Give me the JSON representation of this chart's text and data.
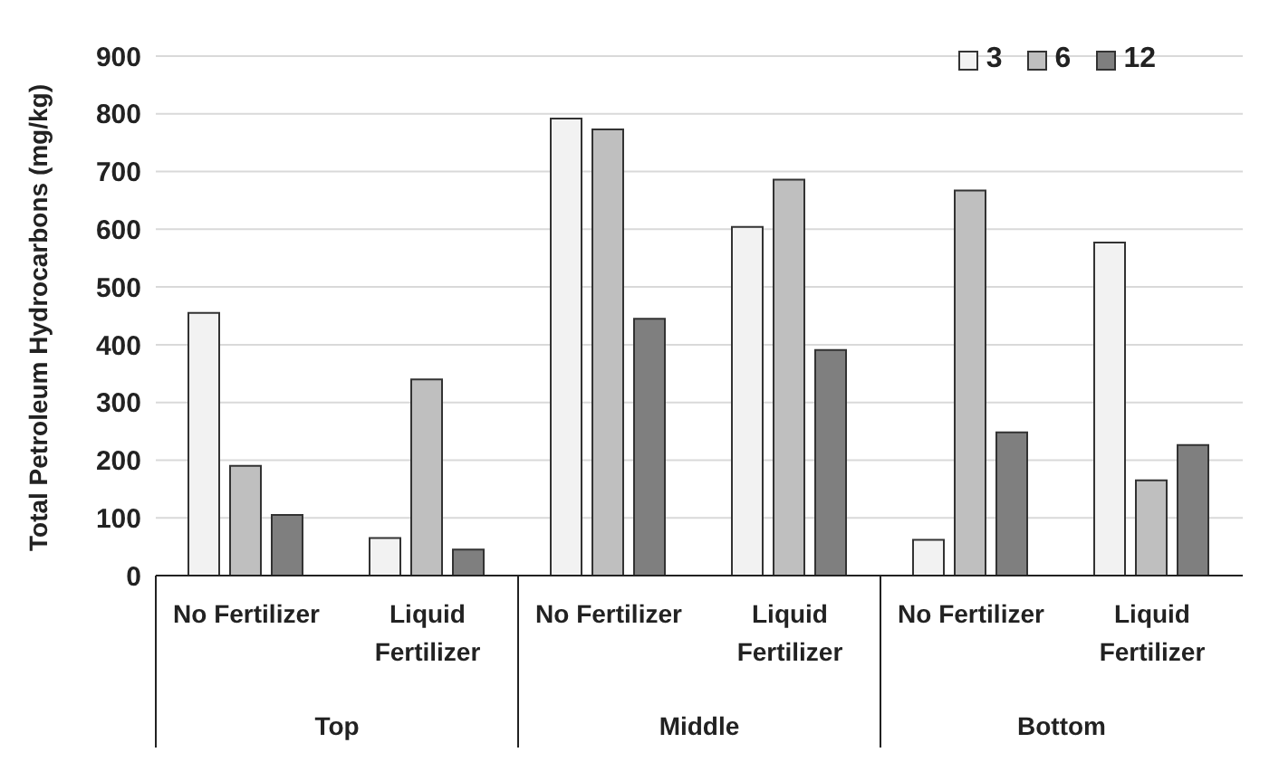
{
  "chart_data": {
    "type": "bar",
    "ylabel": "Total Petroleum Hydrocarbons (mg/kg)",
    "categories": [
      "No Fertilizer",
      "Liquid Fertilizer",
      "No Fertilizer",
      "Liquid Fertilizer",
      "No Fertilizer",
      "Liquid Fertilizer"
    ],
    "annotations": [
      "Top",
      "Middle",
      "Bottom"
    ],
    "series": [
      {
        "name": "3",
        "color": "#f2f2f2",
        "values": [
          455,
          65,
          792,
          604,
          62,
          577
        ]
      },
      {
        "name": "6",
        "color": "#bfbfbf",
        "values": [
          190,
          340,
          773,
          686,
          667,
          165
        ]
      },
      {
        "name": "12",
        "color": "#7f7f7f",
        "values": [
          105,
          45,
          445,
          391,
          248,
          226
        ]
      }
    ],
    "ylim": [
      0,
      900
    ],
    "yticks": [
      0,
      100,
      200,
      300,
      400,
      500,
      600,
      700,
      800,
      900
    ],
    "grid": "y",
    "legend": "top right"
  }
}
